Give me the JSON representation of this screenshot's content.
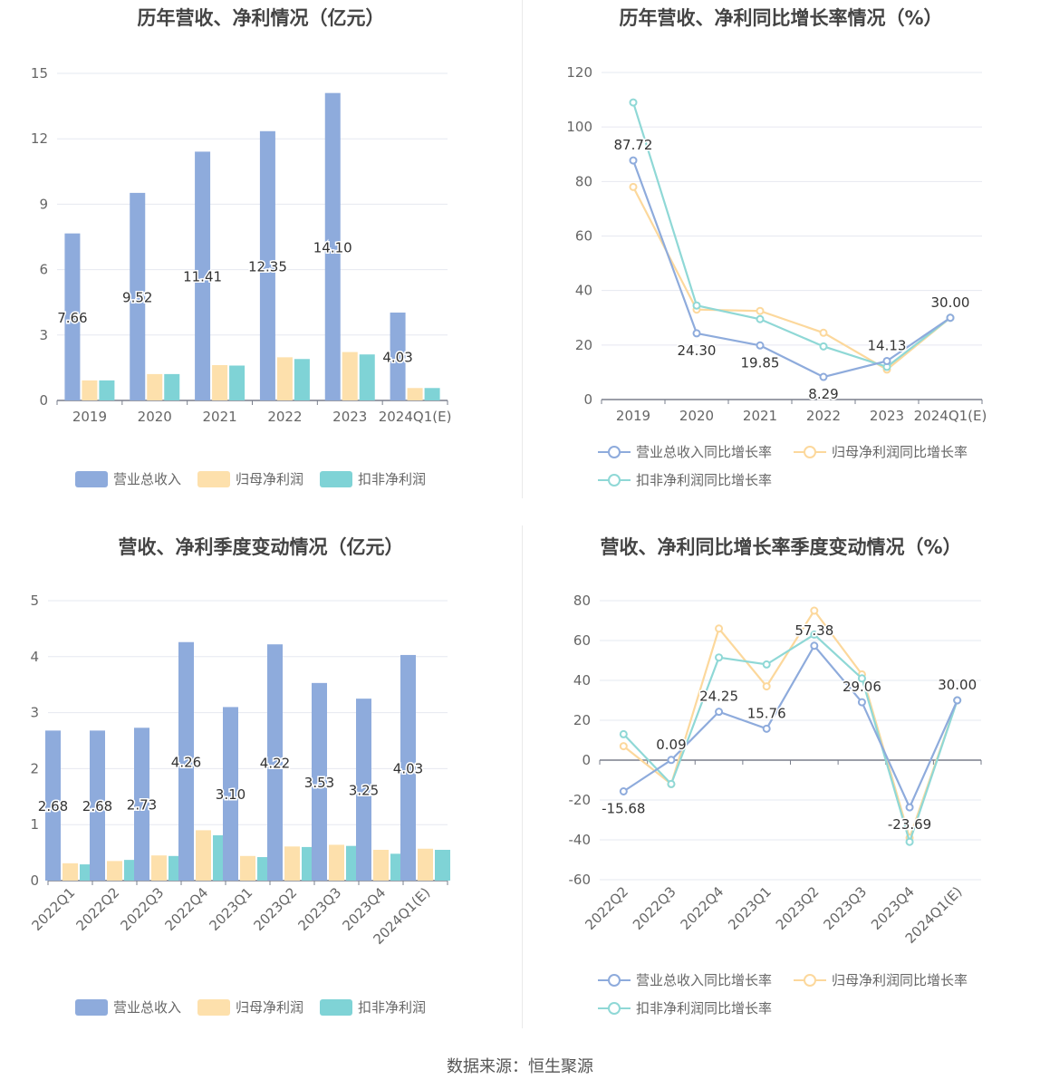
{
  "colors": {
    "revenue": "#8eabdc",
    "net_profit": "#fde0ac",
    "deducted_profit": "#7fd3d6",
    "rev_growth": "#8eabdc",
    "np_growth": "#fcd89c",
    "dp_growth": "#8fd8d6"
  },
  "source": "数据来源：恒生聚源",
  "chart_data": [
    {
      "type": "bar",
      "title": "历年营收、净利情况（亿元）",
      "categories": [
        "2019",
        "2020",
        "2021",
        "2022",
        "2023",
        "2024Q1(E)"
      ],
      "ylim": [
        0,
        15
      ],
      "yticks": [
        "0",
        "3",
        "6",
        "9",
        "12",
        "15"
      ],
      "series": [
        {
          "name": "营业总收入",
          "values": [
            7.66,
            9.52,
            11.41,
            12.35,
            14.1,
            4.03
          ]
        },
        {
          "name": "归母净利润",
          "values": [
            0.92,
            1.21,
            1.62,
            1.98,
            2.22,
            0.57
          ]
        },
        {
          "name": "扣非净利润",
          "values": [
            0.92,
            1.21,
            1.6,
            1.9,
            2.11,
            0.57
          ]
        }
      ],
      "labels": [
        "7.66",
        "9.52",
        "11.41",
        "12.35",
        "14.10",
        "4.03"
      ],
      "legend": [
        "营业总收入",
        "归母净利润",
        "扣非净利润"
      ]
    },
    {
      "type": "line",
      "title": "历年营收、净利同比增长率情况（%）",
      "categories": [
        "2019",
        "2020",
        "2021",
        "2022",
        "2023",
        "2024Q1(E)"
      ],
      "ylim": [
        0,
        120
      ],
      "yticks": [
        "0",
        "20",
        "40",
        "60",
        "80",
        "100",
        "120"
      ],
      "series": [
        {
          "name": "营业总收入同比增长率",
          "values": [
            87.72,
            24.3,
            19.85,
            8.29,
            14.13,
            30.0
          ]
        },
        {
          "name": "归母净利润同比增长率",
          "values": [
            78,
            33,
            32.5,
            24.5,
            11,
            30.0
          ]
        },
        {
          "name": "扣非净利润同比增长率",
          "values": [
            109,
            34.5,
            29.5,
            19.5,
            12,
            30.0
          ]
        }
      ],
      "labels": [
        "87.72",
        "24.30",
        "19.85",
        "8.29",
        "14.13",
        "30.00"
      ],
      "legend": [
        "营业总收入同比增长率",
        "归母净利润同比增长率",
        "扣非净利润同比增长率"
      ]
    },
    {
      "type": "bar",
      "title": "营收、净利季度变动情况（亿元）",
      "categories": [
        "2022Q1",
        "2022Q2",
        "2022Q3",
        "2022Q4",
        "2023Q1",
        "2023Q2",
        "2023Q3",
        "2023Q4",
        "2024Q1(E)"
      ],
      "ylim": [
        0,
        5
      ],
      "yticks": [
        "0",
        "1",
        "2",
        "3",
        "4",
        "5"
      ],
      "series": [
        {
          "name": "营业总收入",
          "values": [
            2.68,
            2.68,
            2.73,
            4.26,
            3.1,
            4.22,
            3.53,
            3.25,
            4.03
          ]
        },
        {
          "name": "归母净利润",
          "values": [
            0.31,
            0.35,
            0.45,
            0.9,
            0.44,
            0.61,
            0.64,
            0.55,
            0.57
          ]
        },
        {
          "name": "扣非净利润",
          "values": [
            0.29,
            0.37,
            0.44,
            0.81,
            0.42,
            0.6,
            0.62,
            0.48,
            0.55
          ]
        }
      ],
      "labels": [
        "2.68",
        "2.68",
        "2.73",
        "4.26",
        "3.10",
        "4.22",
        "3.53",
        "3.25",
        "4.03"
      ],
      "legend": [
        "营业总收入",
        "归母净利润",
        "扣非净利润"
      ]
    },
    {
      "type": "line",
      "title": "营收、净利同比增长率季度变动情况（%）",
      "categories": [
        "2022Q2",
        "2022Q3",
        "2022Q4",
        "2023Q1",
        "2023Q2",
        "2023Q3",
        "2023Q4",
        "2024Q1(E)"
      ],
      "ylim": [
        -60,
        80
      ],
      "yticks": [
        "-60",
        "-40",
        "-20",
        "0",
        "20",
        "40",
        "60",
        "80"
      ],
      "series": [
        {
          "name": "营业总收入同比增长率",
          "values": [
            -15.68,
            0.09,
            24.25,
            15.76,
            57.38,
            29.06,
            -23.69,
            30.0
          ]
        },
        {
          "name": "归母净利润同比增长率",
          "values": [
            7,
            -12,
            66,
            37,
            75,
            43,
            -39,
            30.0
          ]
        },
        {
          "name": "扣非净利润同比增长率",
          "values": [
            13,
            -12,
            51.5,
            48,
            63,
            41,
            -41,
            30.0
          ]
        }
      ],
      "labels": [
        "-15.68",
        "0.09",
        "24.25",
        "15.76",
        "57.38",
        "29.06",
        "-23.69",
        "30.00"
      ],
      "legend": [
        "营业总收入同比增长率",
        "归母净利润同比增长率",
        "扣非净利润同比增长率"
      ]
    }
  ]
}
